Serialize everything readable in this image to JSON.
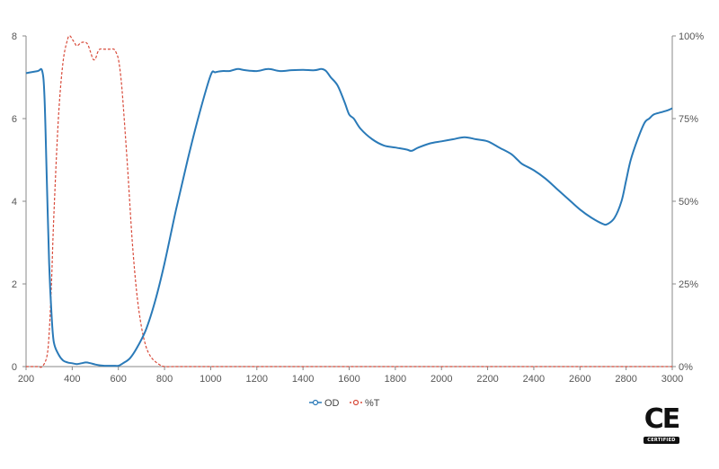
{
  "chart_data": {
    "type": "line",
    "title": "",
    "xlabel": "",
    "ylabel": "",
    "xlim": [
      200,
      3000
    ],
    "ylim_left": [
      0,
      8
    ],
    "ylim_right": [
      0,
      100
    ],
    "grid": false,
    "legend_position": "bottom-center",
    "x_ticks": [
      "200",
      "400",
      "600",
      "800",
      "1000",
      "1200",
      "1400",
      "1600",
      "1800",
      "2000",
      "2200",
      "2400",
      "2600",
      "2800",
      "3000"
    ],
    "y_left_ticks": [
      "0",
      "2",
      "4",
      "6",
      "8"
    ],
    "y_right_ticks": [
      "0%",
      "25%",
      "50%",
      "75%",
      "100%"
    ],
    "series": [
      {
        "name": "OD",
        "axis": "left",
        "color": "#2a7ab8",
        "dash": "solid",
        "x": [
          200,
          250,
          270,
          280,
          290,
          300,
          310,
          320,
          340,
          360,
          380,
          400,
          420,
          440,
          460,
          480,
          500,
          520,
          540,
          560,
          580,
          600,
          620,
          650,
          680,
          720,
          760,
          800,
          850,
          900,
          950,
          1000,
          1020,
          1050,
          1080,
          1100,
          1120,
          1150,
          1200,
          1250,
          1300,
          1350,
          1400,
          1450,
          1480,
          1500,
          1520,
          1550,
          1580,
          1600,
          1620,
          1650,
          1700,
          1750,
          1800,
          1850,
          1870,
          1900,
          1950,
          2000,
          2050,
          2100,
          2150,
          2200,
          2250,
          2300,
          2330,
          2350,
          2400,
          2450,
          2500,
          2550,
          2600,
          2650,
          2700,
          2720,
          2750,
          2780,
          2800,
          2820,
          2850,
          2880,
          2900,
          2920,
          2950,
          2980,
          3000
        ],
        "values": [
          7.1,
          7.15,
          7.15,
          6.5,
          4.5,
          2.5,
          1.3,
          0.6,
          0.3,
          0.15,
          0.1,
          0.08,
          0.06,
          0.08,
          0.1,
          0.08,
          0.05,
          0.03,
          0.02,
          0.02,
          0.02,
          0.02,
          0.08,
          0.2,
          0.45,
          0.9,
          1.6,
          2.5,
          3.8,
          5.0,
          6.1,
          7.05,
          7.12,
          7.15,
          7.15,
          7.18,
          7.2,
          7.17,
          7.15,
          7.2,
          7.15,
          7.17,
          7.18,
          7.17,
          7.2,
          7.15,
          7.0,
          6.8,
          6.4,
          6.1,
          6.0,
          5.75,
          5.5,
          5.35,
          5.3,
          5.25,
          5.22,
          5.3,
          5.4,
          5.45,
          5.5,
          5.55,
          5.5,
          5.45,
          5.3,
          5.15,
          5.0,
          4.9,
          4.75,
          4.55,
          4.3,
          4.05,
          3.8,
          3.6,
          3.45,
          3.45,
          3.6,
          4.0,
          4.5,
          5.0,
          5.5,
          5.9,
          6.0,
          6.1,
          6.15,
          6.2,
          6.25
        ]
      },
      {
        "name": "%T",
        "axis": "right",
        "color": "#d84a3a",
        "dash": "dashed",
        "x": [
          200,
          250,
          270,
          290,
          300,
          310,
          320,
          340,
          360,
          380,
          390,
          400,
          410,
          420,
          440,
          460,
          470,
          480,
          490,
          500,
          510,
          520,
          540,
          560,
          580,
          590,
          600,
          610,
          620,
          640,
          660,
          680,
          700,
          720,
          740,
          760,
          780,
          800,
          850,
          1000,
          1500,
          2000,
          2500,
          3000
        ],
        "values": [
          0,
          0,
          0,
          3,
          10,
          25,
          45,
          75,
          92,
          99,
          100,
          99,
          98,
          97,
          98,
          98,
          97,
          95,
          93,
          93,
          95,
          96,
          96,
          96,
          96,
          95,
          93,
          88,
          80,
          60,
          38,
          22,
          12,
          6,
          3,
          1.5,
          0.5,
          0,
          0,
          0,
          0,
          0,
          0,
          0
        ]
      }
    ]
  },
  "badge": {
    "mark": "CE",
    "caption": "CERTIFIED"
  }
}
